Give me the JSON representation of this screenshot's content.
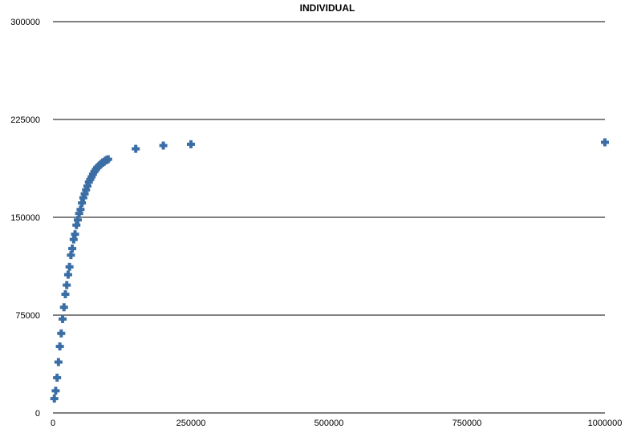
{
  "chart_data": {
    "type": "scatter",
    "title": "INDIVIDUAL",
    "xlabel": "",
    "ylabel": "",
    "xlim": [
      0,
      1000000
    ],
    "ylim": [
      0,
      300000
    ],
    "x_ticks": [
      "0",
      "250000",
      "500000",
      "750000",
      "1000000"
    ],
    "y_ticks": [
      "0",
      "75000",
      "150000",
      "225000",
      "300000"
    ],
    "x_tick_values": [
      0,
      250000,
      500000,
      750000,
      1000000
    ],
    "y_tick_values": [
      0,
      75000,
      150000,
      225000,
      300000
    ],
    "grid": "horizontal",
    "legend": "none",
    "marker": "plus",
    "color": "#3a6ea5",
    "series": [
      {
        "points": [
          [
            2500,
            11000
          ],
          [
            5000,
            17000
          ],
          [
            7500,
            27000
          ],
          [
            10000,
            39000
          ],
          [
            12500,
            51000
          ],
          [
            15000,
            61000
          ],
          [
            17500,
            72000
          ],
          [
            20000,
            81000
          ],
          [
            22500,
            91000
          ],
          [
            25000,
            98000
          ],
          [
            27500,
            106000
          ],
          [
            30000,
            112000
          ],
          [
            32500,
            121000
          ],
          [
            35000,
            126000
          ],
          [
            37500,
            133000
          ],
          [
            40000,
            137000
          ],
          [
            42500,
            144000
          ],
          [
            45000,
            148000
          ],
          [
            47500,
            153000
          ],
          [
            50000,
            156000
          ],
          [
            52500,
            161000
          ],
          [
            55000,
            165000
          ],
          [
            57500,
            168000
          ],
          [
            60000,
            171000
          ],
          [
            62500,
            174000
          ],
          [
            65000,
            177000
          ],
          [
            67500,
            179000
          ],
          [
            70000,
            181000
          ],
          [
            72500,
            183000
          ],
          [
            75000,
            185000
          ],
          [
            77500,
            186500
          ],
          [
            80000,
            188000
          ],
          [
            82500,
            189000
          ],
          [
            85000,
            190000
          ],
          [
            87500,
            191000
          ],
          [
            90000,
            192000
          ],
          [
            92500,
            192500
          ],
          [
            95000,
            193500
          ],
          [
            97500,
            194000
          ],
          [
            100000,
            194500
          ],
          [
            150000,
            202500
          ],
          [
            200000,
            205000
          ],
          [
            250000,
            206000
          ],
          [
            1000000,
            207500
          ]
        ]
      }
    ]
  }
}
